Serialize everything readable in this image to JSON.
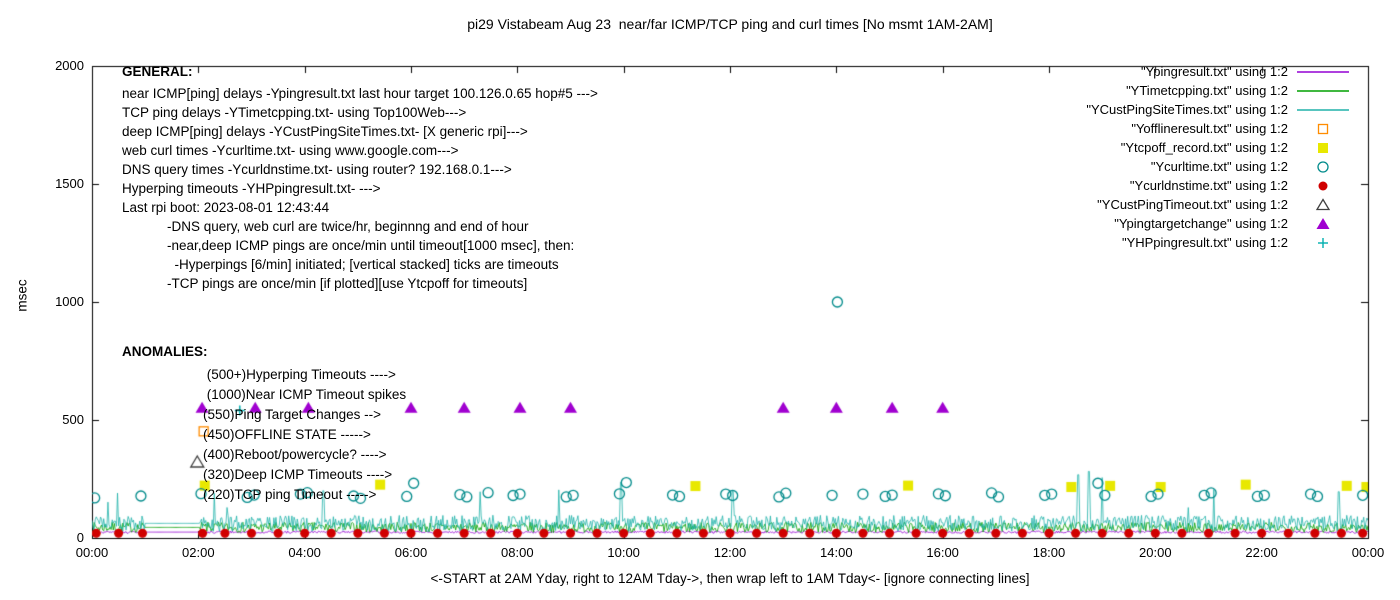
{
  "annotations": {
    "general_header": "GENERAL:",
    "general_lines": [
      "near ICMP[ping] delays -Ypingresult.txt last hour target 100.126.0.65 hop#5 --->",
      "TCP ping delays -YTimetcpping.txt- using Top100Web--->",
      "deep ICMP[ping] delays -YCustPingSiteTimes.txt- [X generic rpi]--->",
      "web curl times -Ycurltime.txt- using www.google.com--->",
      "DNS query times -Ycurldnstime.txt- using router? 192.168.0.1--->",
      "Hyperping timeouts -YHPpingresult.txt- --->",
      "Last rpi boot: 2023-08-01 12:43:44",
      "            -DNS query, web curl are twice/hr, beginnng and end of hour",
      "            -near,deep ICMP pings are once/min until timeout[1000 msec], then:",
      "              -Hyperpings [6/min] initiated; [vertical stacked] ticks are timeouts",
      "            -TCP pings are once/min [if plotted][use Ytcpoff for timeouts]"
    ],
    "anomalies_header": "ANOMALIES:",
    "anomaly_lines": [
      " (500+)Hyperping Timeouts ---->",
      " (1000)Near ICMP Timeout spikes",
      "(550)Ping Target Changes -->",
      "(450)OFFLINE STATE ----->",
      "(400)Reboot/powercycle? ---->",
      "(320)Deep ICMP Timeouts ---->",
      "(220)TCP ping Timeout ----->"
    ]
  },
  "chart_data": {
    "type": "line",
    "title": "pi29 Vistabeam Aug 23  near/far ICMP/TCP ping and curl times [No msmt 1AM-2AM]",
    "xlabel": "<-START at 2AM Yday, right to 12AM Tday->, then wrap left to 1AM Tday<- [ignore connecting lines]",
    "ylabel": "msec",
    "xlim": [
      0,
      24
    ],
    "ylim": [
      0,
      2000
    ],
    "x_tick_values": [
      0,
      2,
      4,
      6,
      8,
      10,
      12,
      14,
      16,
      18,
      20,
      22,
      24
    ],
    "x_tick_labels": [
      "00:00",
      "02:00",
      "04:00",
      "06:00",
      "08:00",
      "10:00",
      "12:00",
      "14:00",
      "16:00",
      "18:00",
      "20:00",
      "22:00",
      "00:00"
    ],
    "y_tick_values": [
      0,
      500,
      1000,
      1500,
      2000
    ],
    "y_tick_labels": [
      "0",
      "500",
      "1000",
      "1500",
      "2000"
    ],
    "grid": false,
    "legend_position": "top-right",
    "series": [
      {
        "label": "\"Ypingresult.txt\" using 1:2",
        "type": "line",
        "marker": "line",
        "color": "#9400D3",
        "baseline": 25,
        "jitter": 5,
        "seed": 3,
        "flat_gap": true
      },
      {
        "label": "\"YTimetcpping.txt\" using 1:2",
        "type": "line",
        "marker": "line",
        "color": "#00A000",
        "baseline": 45,
        "jitter": 22,
        "seed": 7,
        "flat_gap": true
      },
      {
        "label": "\"YCustPingSiteTimes.txt\" using 1:2",
        "type": "line",
        "marker": "line",
        "color": "#20B2AA",
        "baseline": 62,
        "jitter": 34,
        "seed": 5,
        "spike_prob": 0.012,
        "spike_amp": 130,
        "flat_gap": true,
        "spikes": [
          [
            0.3,
            152
          ],
          [
            4.35,
            200
          ],
          [
            7.3,
            196
          ],
          [
            9.95,
            236
          ],
          [
            12.05,
            196
          ],
          [
            18.55,
            268
          ],
          [
            18.75,
            282
          ],
          [
            19.0,
            256
          ],
          [
            21.1,
            206
          ],
          [
            23.45,
            196
          ]
        ]
      },
      {
        "label": "\"Yofflineresult.txt\" using 1:2",
        "type": "points",
        "marker": "square-open",
        "color": "#FF8C00",
        "points": [
          [
            2.1,
            452
          ]
        ]
      },
      {
        "label": "\"Ytcpoff_record.txt\" using 1:2",
        "type": "points",
        "marker": "square-filled",
        "color": "#E8E800",
        "points": [
          [
            2.12,
            222
          ],
          [
            5.42,
            226
          ],
          [
            11.35,
            220
          ],
          [
            15.35,
            222
          ],
          [
            18.42,
            216
          ],
          [
            19.15,
            221
          ],
          [
            20.1,
            216
          ],
          [
            21.7,
            226
          ],
          [
            23.6,
            221
          ],
          [
            23.97,
            216
          ]
        ]
      },
      {
        "label": "\"Ycurltime.txt\" using 1:2",
        "type": "points",
        "marker": "circle-open",
        "color": "#008B8B",
        "points": [
          [
            0.05,
            170
          ],
          [
            0.92,
            178
          ],
          [
            2.05,
            188
          ],
          [
            2.92,
            172
          ],
          [
            3.05,
            182
          ],
          [
            3.92,
            186
          ],
          [
            4.05,
            192
          ],
          [
            4.92,
            178
          ],
          [
            5.05,
            168
          ],
          [
            5.92,
            176
          ],
          [
            6.05,
            232
          ],
          [
            6.92,
            184
          ],
          [
            7.05,
            174
          ],
          [
            7.45,
            192
          ],
          [
            7.92,
            180
          ],
          [
            8.05,
            186
          ],
          [
            8.92,
            174
          ],
          [
            9.05,
            181
          ],
          [
            9.92,
            187
          ],
          [
            10.05,
            235
          ],
          [
            10.92,
            182
          ],
          [
            11.05,
            176
          ],
          [
            11.92,
            186
          ],
          [
            12.05,
            180
          ],
          [
            12.92,
            174
          ],
          [
            13.05,
            190
          ],
          [
            13.92,
            181
          ],
          [
            14.02,
            1000
          ],
          [
            14.5,
            186
          ],
          [
            14.92,
            176
          ],
          [
            15.05,
            182
          ],
          [
            15.92,
            187
          ],
          [
            16.05,
            179
          ],
          [
            16.92,
            191
          ],
          [
            17.05,
            174
          ],
          [
            17.92,
            181
          ],
          [
            18.05,
            186
          ],
          [
            18.92,
            232
          ],
          [
            19.05,
            181
          ],
          [
            19.92,
            176
          ],
          [
            20.05,
            186
          ],
          [
            20.92,
            181
          ],
          [
            21.05,
            191
          ],
          [
            21.92,
            176
          ],
          [
            22.05,
            181
          ],
          [
            22.92,
            186
          ],
          [
            23.05,
            176
          ],
          [
            23.9,
            181
          ]
        ]
      },
      {
        "label": "\"Ycurldnstime.txt\" using 1:2",
        "type": "points",
        "marker": "circle-filled",
        "color": "#D00000",
        "y_all": 20,
        "xs": [
          0.08,
          0.5,
          0.95,
          2.08,
          2.5,
          3.0,
          3.5,
          4.0,
          4.5,
          5.0,
          5.5,
          6.0,
          6.5,
          7.0,
          7.5,
          8.0,
          8.5,
          9.0,
          9.5,
          10.0,
          10.5,
          11.0,
          11.5,
          12.0,
          12.5,
          13.0,
          13.5,
          14.0,
          14.5,
          15.0,
          15.5,
          16.0,
          16.5,
          17.0,
          17.5,
          18.0,
          18.5,
          19.0,
          19.5,
          20.0,
          20.5,
          21.0,
          21.5,
          22.0,
          22.5,
          23.0,
          23.5,
          23.9
        ]
      },
      {
        "label": "\"YCustPingTimeout.txt\" using 1:2",
        "type": "points",
        "marker": "triangle-open",
        "color": "#404040",
        "points": [
          [
            1.98,
            322
          ]
        ]
      },
      {
        "label": "\"Ypingtargetchange\" using 1:2",
        "type": "points",
        "marker": "triangle-filled",
        "color": "#A000D0",
        "points": [
          [
            2.07,
            552
          ],
          [
            3.07,
            552
          ],
          [
            4.07,
            552
          ],
          [
            6.0,
            552
          ],
          [
            7.0,
            552
          ],
          [
            8.05,
            552
          ],
          [
            9.0,
            552
          ],
          [
            13.0,
            552
          ],
          [
            14.0,
            552
          ],
          [
            15.05,
            552
          ],
          [
            16.0,
            552
          ]
        ]
      },
      {
        "label": "\"YHPpingresult.txt\" using 1:2",
        "type": "points",
        "marker": "plus",
        "color": "#00AFAF",
        "points": [
          [
            2.78,
            540
          ]
        ]
      }
    ]
  }
}
